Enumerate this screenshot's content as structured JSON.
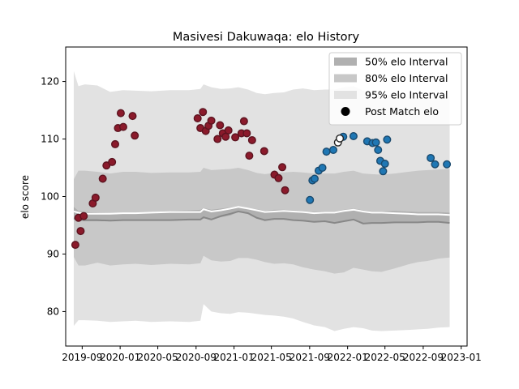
{
  "chart_data": {
    "type": "line",
    "title": "Masivesi Dakuwaqa: elo History",
    "xlabel": "",
    "ylabel": "elo score",
    "x_ticks": [
      "2019-09",
      "2020-01",
      "2020-05",
      "2020-09",
      "2021-01",
      "2021-05",
      "2021-09",
      "2022-01",
      "2022-05",
      "2022-09",
      "2023-01"
    ],
    "y_ticks": [
      80,
      90,
      100,
      110,
      120
    ],
    "xlim": [
      "2019-07-10",
      "2023-01-20"
    ],
    "ylim": [
      74,
      126
    ],
    "grid": false,
    "legend_position": "top-right",
    "legend": [
      {
        "label": "50% elo Interval",
        "color": "#b0b0b0"
      },
      {
        "label": "80% elo Interval",
        "color": "#c8c8c8"
      },
      {
        "label": "95% elo Interval",
        "color": "#e2e2e2"
      },
      {
        "label": "Post Match elo",
        "color": "#000000"
      }
    ],
    "colors": {
      "band_95": "#e2e2e2",
      "band_80": "#c8c8c8",
      "band_50": "#b0b0b0",
      "mean_line": "#ffffff",
      "median_line": "#888888",
      "early_points": "#8b1a2b",
      "recent_points": "#1f77b4",
      "marker_edge": "#1a4a6e",
      "latest_points": "#ffffff"
    },
    "bands": {
      "x": [
        "2019-08-05",
        "2019-08-20",
        "2019-09-10",
        "2019-10-20",
        "2019-11-30",
        "2020-01-10",
        "2020-02-20",
        "2020-04-10",
        "2020-06-10",
        "2020-08-10",
        "2020-09-15",
        "2020-09-25",
        "2020-10-20",
        "2020-11-20",
        "2020-12-20",
        "2021-01-15",
        "2021-02-15",
        "2021-03-15",
        "2021-04-10",
        "2021-05-10",
        "2021-06-10",
        "2021-07-10",
        "2021-08-10",
        "2021-09-15",
        "2021-10-20",
        "2021-11-20",
        "2021-12-20",
        "2022-01-20",
        "2022-02-20",
        "2022-03-20",
        "2022-04-20",
        "2022-06-01",
        "2022-07-15",
        "2022-08-15",
        "2022-09-15",
        "2022-10-20",
        "2022-11-25"
      ],
      "lower95": [
        77.5,
        78.5,
        78.5,
        78.4,
        78.2,
        78.3,
        78.4,
        78.2,
        78.3,
        78.2,
        78.4,
        81.3,
        80.0,
        79.7,
        79.6,
        79.9,
        79.8,
        79.6,
        79.4,
        79.3,
        79.1,
        78.8,
        78.2,
        77.6,
        77.3,
        76.6,
        77.0,
        77.3,
        77.1,
        76.7,
        76.6,
        76.7,
        76.8,
        76.9,
        77.0,
        77.2,
        77.3
      ],
      "lower80": [
        89.5,
        88.0,
        88.0,
        88.5,
        88.0,
        88.2,
        88.3,
        88.1,
        88.3,
        88.2,
        88.4,
        89.7,
        88.9,
        88.7,
        88.8,
        89.3,
        89.3,
        89.0,
        88.6,
        88.3,
        88.4,
        88.2,
        87.7,
        87.3,
        87.0,
        86.6,
        86.8,
        87.6,
        87.3,
        87.0,
        86.9,
        87.5,
        88.2,
        88.6,
        88.8,
        89.2,
        89.4
      ],
      "lower50": [
        96.2,
        95.8,
        95.7,
        95.7,
        95.7,
        95.8,
        95.8,
        95.8,
        95.8,
        95.9,
        95.9,
        96.2,
        96.0,
        96.4,
        96.7,
        97.3,
        97.0,
        96.4,
        95.7,
        96.0,
        96.0,
        95.8,
        95.7,
        95.5,
        95.6,
        95.3,
        95.6,
        95.9,
        95.2,
        95.3,
        95.3,
        95.4,
        95.5,
        95.5,
        95.6,
        95.6,
        95.4
      ],
      "upper50": [
        98.2,
        97.5,
        97.3,
        97.2,
        97.1,
        97.2,
        97.2,
        97.3,
        97.5,
        97.6,
        97.7,
        98.0,
        97.7,
        97.9,
        98.1,
        98.3,
        98.0,
        97.8,
        97.5,
        97.7,
        97.7,
        97.6,
        97.5,
        97.3,
        97.4,
        97.4,
        97.7,
        97.9,
        97.6,
        97.4,
        97.4,
        97.5,
        97.4,
        97.3,
        97.3,
        97.3,
        97.2
      ],
      "upper80": [
        103.0,
        104.5,
        104.5,
        104.3,
        104.0,
        104.3,
        104.3,
        104.1,
        104.2,
        104.2,
        104.3,
        105.0,
        104.6,
        104.7,
        104.8,
        105.0,
        104.6,
        104.1,
        103.9,
        104.1,
        104.2,
        104.3,
        104.2,
        104.0,
        104.0,
        104.0,
        104.3,
        104.5,
        104.0,
        103.9,
        103.8,
        104.0,
        104.3,
        104.5,
        104.6,
        104.7,
        104.8
      ],
      "upper95": [
        121.8,
        119.2,
        119.5,
        119.3,
        118.2,
        118.5,
        118.4,
        118.3,
        118.5,
        118.5,
        118.7,
        119.5,
        119.0,
        118.7,
        118.8,
        119.0,
        118.6,
        118.0,
        117.8,
        118.0,
        118.1,
        118.6,
        118.8,
        118.5,
        118.6,
        118.6,
        119.0,
        119.2,
        118.4,
        118.0,
        117.9,
        117.5,
        117.3,
        117.2,
        117.2,
        117.3,
        117.4
      ],
      "mean": [
        97.4,
        97.2,
        97.0,
        97.0,
        97.0,
        97.1,
        97.1,
        97.2,
        97.3,
        97.3,
        97.3,
        97.8,
        97.4,
        97.6,
        97.9,
        98.2,
        97.9,
        97.6,
        97.3,
        97.4,
        97.5,
        97.4,
        97.3,
        97.1,
        97.2,
        97.2,
        97.5,
        97.7,
        97.4,
        97.2,
        97.2,
        97.1,
        97.0,
        96.9,
        96.9,
        96.9,
        96.8
      ],
      "median": [
        96.2,
        96.0,
        95.9,
        95.9,
        95.8,
        95.9,
        95.9,
        95.9,
        95.9,
        96.0,
        96.0,
        96.4,
        96.0,
        96.6,
        97.0,
        97.4,
        97.1,
        96.3,
        95.9,
        96.1,
        96.1,
        95.9,
        95.8,
        95.6,
        95.7,
        95.4,
        95.7,
        96.0,
        95.3,
        95.4,
        95.4,
        95.5,
        95.5,
        95.5,
        95.6,
        95.6,
        95.4
      ]
    },
    "series": [
      {
        "group": "early",
        "x": [
          "2019-08-10",
          "2019-08-20",
          "2019-08-27",
          "2019-09-06",
          "2019-10-05",
          "2019-10-14",
          "2019-11-06",
          "2019-11-18",
          "2019-12-06",
          "2019-12-16",
          "2019-12-25",
          "2020-01-03",
          "2020-01-11",
          "2020-02-10",
          "2020-02-17",
          "2020-09-06",
          "2020-09-15",
          "2020-09-23",
          "2020-10-02",
          "2020-10-11",
          "2020-10-20",
          "2020-11-09",
          "2020-11-17",
          "2020-11-26",
          "2020-12-05",
          "2020-12-14",
          "2021-01-05",
          "2021-01-25",
          "2021-02-02",
          "2021-02-11",
          "2021-02-19",
          "2021-02-28",
          "2021-04-08",
          "2021-05-11",
          "2021-05-24",
          "2021-06-05",
          "2021-06-14"
        ],
        "y": [
          91.6,
          96.3,
          94.0,
          96.6,
          98.8,
          99.8,
          103.1,
          105.4,
          106.0,
          109.1,
          111.9,
          114.5,
          112.1,
          114.0,
          110.6,
          113.6,
          111.9,
          114.7,
          111.4,
          112.3,
          113.2,
          110.0,
          112.4,
          111.0,
          110.4,
          111.5,
          110.3,
          111.0,
          113.1,
          111.0,
          107.1,
          109.8,
          107.9,
          103.8,
          103.2,
          105.1,
          101.1
        ]
      },
      {
        "group": "recent",
        "x": [
          "2021-09-02",
          "2021-09-10",
          "2021-09-17",
          "2021-09-30",
          "2021-10-12",
          "2021-10-25",
          "2021-11-16",
          "2021-12-18",
          "2022-01-20",
          "2022-03-05",
          "2022-03-22",
          "2022-04-02",
          "2022-04-09",
          "2022-04-16",
          "2022-04-25",
          "2022-05-01",
          "2022-05-08",
          "2022-09-25",
          "2022-10-09",
          "2022-11-16"
        ],
        "y": [
          99.4,
          102.8,
          103.1,
          104.5,
          105.0,
          107.8,
          108.1,
          110.4,
          110.5,
          109.6,
          109.3,
          109.4,
          108.1,
          106.2,
          104.4,
          105.7,
          109.9,
          106.7,
          105.6,
          105.6
        ]
      },
      {
        "group": "latest",
        "x": [
          "2021-12-01",
          "2021-12-07"
        ],
        "y": [
          109.4,
          110.1
        ]
      }
    ]
  }
}
